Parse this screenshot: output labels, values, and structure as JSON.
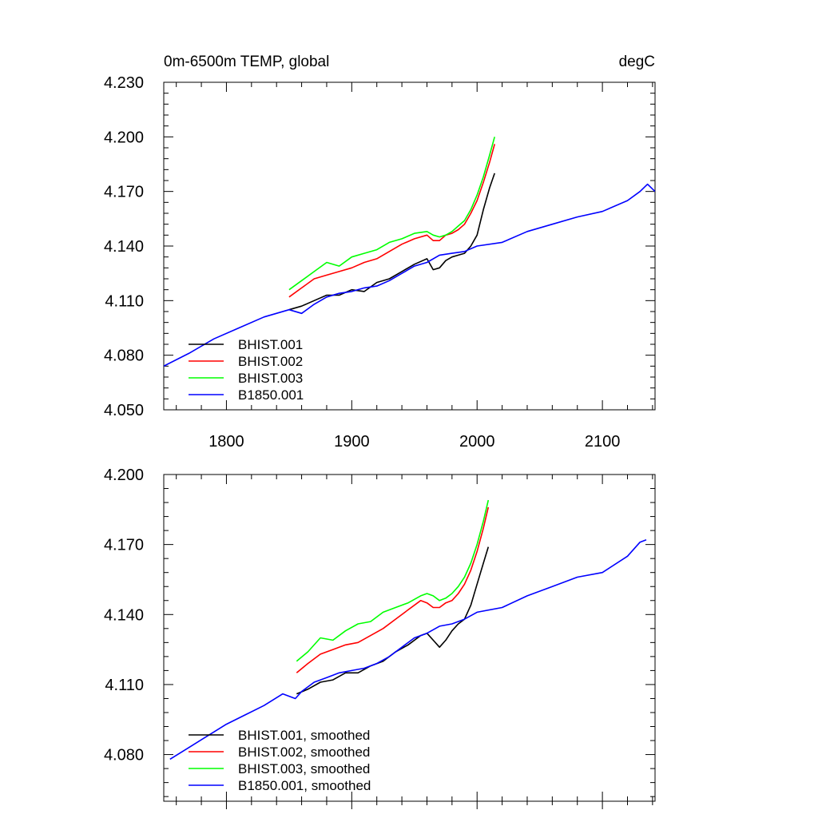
{
  "chart_data": [
    {
      "type": "line",
      "title_left": "0m-6500m TEMP, global",
      "title_right": "degC",
      "xlabel": "",
      "ylabel": "",
      "xlim": [
        1750,
        2142
      ],
      "ylim": [
        4.05,
        4.23
      ],
      "yticks": [
        4.05,
        4.08,
        4.11,
        4.14,
        4.17,
        4.2,
        4.23
      ],
      "ytick_labels": [
        "4.050",
        "4.080",
        "4.110",
        "4.140",
        "4.170",
        "4.200",
        "4.230"
      ],
      "xticks": [
        1800,
        1900,
        2000,
        2100
      ],
      "xtick_labels": [
        "1800",
        "1900",
        "2000",
        "2100"
      ],
      "legend_position": "lower-left",
      "series": [
        {
          "name": "BHIST.001",
          "color": "#000000",
          "x": [
            1850,
            1860,
            1870,
            1880,
            1890,
            1900,
            1910,
            1920,
            1930,
            1940,
            1950,
            1960,
            1965,
            1970,
            1975,
            1980,
            1985,
            1990,
            1995,
            2000,
            2005,
            2010,
            2014
          ],
          "y": [
            4.105,
            4.107,
            4.11,
            4.113,
            4.113,
            4.116,
            4.115,
            4.12,
            4.122,
            4.126,
            4.13,
            4.133,
            4.127,
            4.128,
            4.132,
            4.134,
            4.135,
            4.136,
            4.14,
            4.146,
            4.16,
            4.172,
            4.18
          ]
        },
        {
          "name": "BHIST.002",
          "color": "#ff0000",
          "x": [
            1850,
            1860,
            1870,
            1880,
            1890,
            1900,
            1910,
            1920,
            1930,
            1940,
            1950,
            1960,
            1965,
            1970,
            1975,
            1980,
            1985,
            1990,
            1995,
            2000,
            2005,
            2010,
            2014
          ],
          "y": [
            4.112,
            4.117,
            4.122,
            4.124,
            4.126,
            4.128,
            4.131,
            4.133,
            4.137,
            4.141,
            4.144,
            4.146,
            4.143,
            4.143,
            4.146,
            4.147,
            4.149,
            4.152,
            4.158,
            4.165,
            4.175,
            4.186,
            4.196
          ]
        },
        {
          "name": "BHIST.003",
          "color": "#00ff00",
          "x": [
            1850,
            1860,
            1870,
            1880,
            1890,
            1900,
            1910,
            1920,
            1930,
            1940,
            1950,
            1960,
            1965,
            1970,
            1975,
            1980,
            1985,
            1990,
            1995,
            2000,
            2005,
            2010,
            2014
          ],
          "y": [
            4.116,
            4.121,
            4.126,
            4.131,
            4.129,
            4.134,
            4.136,
            4.138,
            4.142,
            4.144,
            4.147,
            4.148,
            4.146,
            4.145,
            4.146,
            4.148,
            4.151,
            4.154,
            4.16,
            4.168,
            4.178,
            4.19,
            4.2
          ]
        },
        {
          "name": "B1850.001",
          "color": "#0000ff",
          "x": [
            1750,
            1770,
            1790,
            1810,
            1830,
            1850,
            1860,
            1870,
            1880,
            1890,
            1900,
            1910,
            1920,
            1930,
            1940,
            1950,
            1960,
            1970,
            1980,
            1990,
            2000,
            2020,
            2040,
            2060,
            2080,
            2100,
            2120,
            2130,
            2136,
            2142
          ],
          "y": [
            4.074,
            4.081,
            4.089,
            4.095,
            4.101,
            4.105,
            4.103,
            4.108,
            4.112,
            4.114,
            4.115,
            4.117,
            4.118,
            4.121,
            4.125,
            4.129,
            4.131,
            4.135,
            4.136,
            4.137,
            4.14,
            4.142,
            4.148,
            4.152,
            4.156,
            4.159,
            4.165,
            4.17,
            4.174,
            4.17
          ]
        }
      ]
    },
    {
      "type": "line",
      "xlim": [
        1750,
        2142
      ],
      "ylim": [
        4.06,
        4.2
      ],
      "yticks": [
        4.08,
        4.11,
        4.14,
        4.17,
        4.2
      ],
      "ytick_labels": [
        "4.080",
        "4.110",
        "4.140",
        "4.170",
        "4.200"
      ],
      "xticks": [
        1800,
        1900,
        2000,
        2100
      ],
      "xtick_labels": [],
      "legend_position": "lower-left",
      "series": [
        {
          "name": "BHIST.001, smoothed",
          "color": "#000000",
          "x": [
            1856,
            1865,
            1875,
            1885,
            1895,
            1905,
            1915,
            1925,
            1935,
            1945,
            1955,
            1960,
            1965,
            1970,
            1975,
            1980,
            1985,
            1990,
            1995,
            2000,
            2005,
            2009
          ],
          "y": [
            4.106,
            4.108,
            4.111,
            4.112,
            4.115,
            4.115,
            4.118,
            4.12,
            4.124,
            4.127,
            4.131,
            4.132,
            4.129,
            4.126,
            4.129,
            4.133,
            4.136,
            4.138,
            4.144,
            4.153,
            4.162,
            4.169
          ]
        },
        {
          "name": "BHIST.002, smoothed",
          "color": "#ff0000",
          "x": [
            1856,
            1865,
            1875,
            1885,
            1895,
            1905,
            1915,
            1925,
            1935,
            1945,
            1955,
            1960,
            1965,
            1970,
            1975,
            1980,
            1985,
            1990,
            1995,
            2000,
            2005,
            2009
          ],
          "y": [
            4.115,
            4.119,
            4.123,
            4.125,
            4.127,
            4.128,
            4.131,
            4.134,
            4.138,
            4.142,
            4.146,
            4.145,
            4.143,
            4.143,
            4.145,
            4.146,
            4.149,
            4.153,
            4.159,
            4.167,
            4.177,
            4.186
          ]
        },
        {
          "name": "BHIST.003, smoothed",
          "color": "#00ff00",
          "x": [
            1856,
            1865,
            1875,
            1885,
            1895,
            1905,
            1915,
            1925,
            1935,
            1945,
            1955,
            1960,
            1965,
            1970,
            1975,
            1980,
            1985,
            1990,
            1995,
            2000,
            2005,
            2009
          ],
          "y": [
            4.12,
            4.124,
            4.13,
            4.129,
            4.133,
            4.136,
            4.137,
            4.141,
            4.143,
            4.145,
            4.148,
            4.149,
            4.148,
            4.146,
            4.147,
            4.149,
            4.152,
            4.156,
            4.162,
            4.17,
            4.18,
            4.189
          ]
        },
        {
          "name": "B1850.001, smoothed",
          "color": "#0000ff",
          "x": [
            1755,
            1770,
            1785,
            1800,
            1815,
            1830,
            1845,
            1855,
            1860,
            1870,
            1880,
            1890,
            1900,
            1910,
            1920,
            1930,
            1940,
            1950,
            1960,
            1970,
            1980,
            1990,
            2000,
            2020,
            2040,
            2060,
            2080,
            2100,
            2120,
            2130,
            2135
          ],
          "y": [
            4.078,
            4.083,
            4.088,
            4.093,
            4.097,
            4.101,
            4.106,
            4.104,
            4.107,
            4.111,
            4.113,
            4.115,
            4.116,
            4.117,
            4.119,
            4.122,
            4.126,
            4.13,
            4.132,
            4.135,
            4.136,
            4.138,
            4.141,
            4.143,
            4.148,
            4.152,
            4.156,
            4.158,
            4.165,
            4.171,
            4.172
          ]
        }
      ]
    }
  ]
}
